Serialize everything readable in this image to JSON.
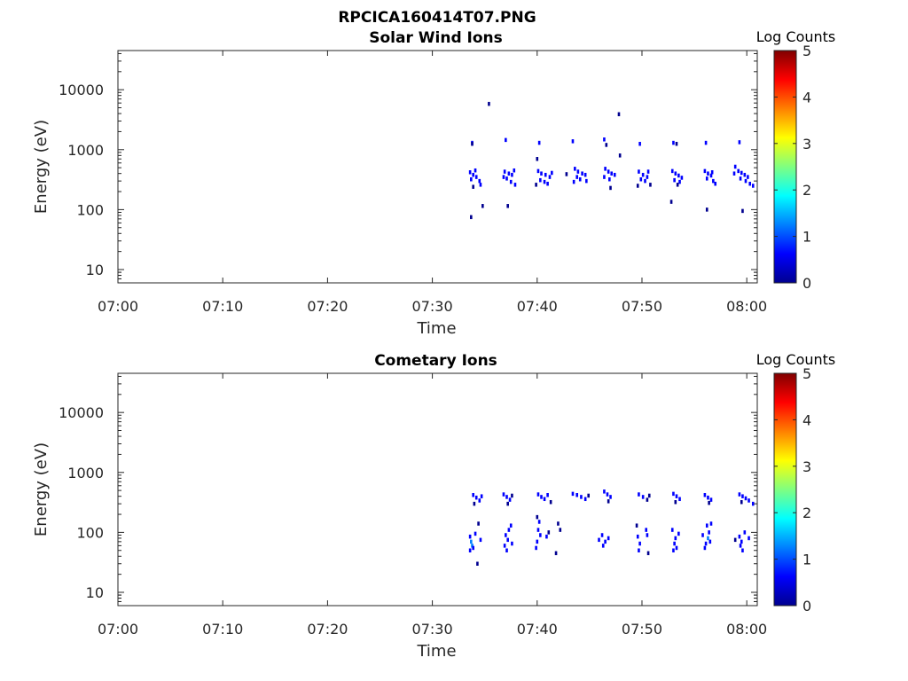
{
  "figure": {
    "title": "RPCICA160414T07.PNG"
  },
  "colormap": [
    "#00008f",
    "#0000ff",
    "#0080ff",
    "#00ffff",
    "#80ff80",
    "#ffff00",
    "#ff8000",
    "#ff0000",
    "#800000"
  ],
  "chart_data": [
    {
      "type": "heatmap",
      "title": "Solar Wind Ions",
      "xlabel": "Time",
      "ylabel": "Energy (eV)",
      "x_tick_labels": [
        "07:00",
        "07:10",
        "07:20",
        "07:30",
        "07:40",
        "07:50",
        "08:00"
      ],
      "x_tick_minutes": [
        0,
        10,
        20,
        30,
        40,
        50,
        60
      ],
      "xlim_minutes": [
        0,
        61
      ],
      "y_scale": "log",
      "ylim": [
        6,
        45000
      ],
      "y_tick_labels": [
        "10",
        "100",
        "1000",
        "10000"
      ],
      "y_tick_values": [
        10,
        100,
        1000,
        10000
      ],
      "colorbar": {
        "label": "Log Counts",
        "ticks": [
          "0",
          "1",
          "2",
          "3",
          "4",
          "5"
        ],
        "range": [
          0,
          5
        ]
      },
      "points": [
        [
          33.8,
          1300,
          0.4
        ],
        [
          33.8,
          1250,
          0.3
        ],
        [
          33.6,
          420,
          0.5
        ],
        [
          33.9,
          380,
          0.6
        ],
        [
          34.2,
          350,
          0.5
        ],
        [
          34.5,
          300,
          0.5
        ],
        [
          34.1,
          450,
          0.4
        ],
        [
          33.7,
          320,
          0.5
        ],
        [
          34.6,
          260,
          0.4
        ],
        [
          33.9,
          240,
          0.3
        ],
        [
          33.7,
          75,
          0.3
        ],
        [
          34.8,
          115,
          0.3
        ],
        [
          35.4,
          5800,
          0.3
        ],
        [
          37.0,
          1450,
          0.4
        ],
        [
          36.9,
          430,
          0.5
        ],
        [
          37.3,
          400,
          0.6
        ],
        [
          37.6,
          380,
          0.5
        ],
        [
          37.1,
          330,
          0.5
        ],
        [
          37.5,
          290,
          0.4
        ],
        [
          37.9,
          260,
          0.4
        ],
        [
          36.8,
          350,
          0.4
        ],
        [
          37.2,
          115,
          0.3
        ],
        [
          37.8,
          450,
          0.5
        ],
        [
          40.2,
          1300,
          0.4
        ],
        [
          40.0,
          700,
          0.3
        ],
        [
          40.1,
          440,
          0.5
        ],
        [
          40.4,
          400,
          0.6
        ],
        [
          40.8,
          380,
          0.6
        ],
        [
          41.2,
          350,
          0.5
        ],
        [
          40.3,
          310,
          0.5
        ],
        [
          40.7,
          290,
          0.5
        ],
        [
          41.0,
          270,
          0.4
        ],
        [
          41.4,
          410,
          0.5
        ],
        [
          39.9,
          260,
          0.3
        ],
        [
          43.4,
          1380,
          0.4
        ],
        [
          43.6,
          480,
          0.6
        ],
        [
          43.9,
          430,
          0.7
        ],
        [
          44.3,
          400,
          0.6
        ],
        [
          44.6,
          380,
          0.5
        ],
        [
          43.8,
          350,
          0.6
        ],
        [
          44.1,
          320,
          0.5
        ],
        [
          44.7,
          300,
          0.4
        ],
        [
          42.8,
          390,
          0.3
        ],
        [
          43.5,
          290,
          0.4
        ],
        [
          46.4,
          1480,
          0.4
        ],
        [
          46.6,
          1200,
          0.3
        ],
        [
          46.5,
          480,
          0.5
        ],
        [
          46.8,
          430,
          0.6
        ],
        [
          47.1,
          400,
          0.5
        ],
        [
          46.4,
          350,
          0.5
        ],
        [
          46.9,
          320,
          0.4
        ],
        [
          47.4,
          380,
          0.5
        ],
        [
          47.8,
          3900,
          0.3
        ],
        [
          47.9,
          800,
          0.3
        ],
        [
          47.0,
          230,
          0.3
        ],
        [
          49.8,
          1250,
          0.4
        ],
        [
          49.7,
          430,
          0.5
        ],
        [
          50.1,
          380,
          0.6
        ],
        [
          50.5,
          350,
          0.5
        ],
        [
          49.9,
          320,
          0.4
        ],
        [
          50.3,
          300,
          0.4
        ],
        [
          50.8,
          260,
          0.3
        ],
        [
          50.6,
          430,
          0.4
        ],
        [
          49.6,
          250,
          0.3
        ],
        [
          53.0,
          1300,
          0.4
        ],
        [
          53.3,
          1250,
          0.3
        ],
        [
          52.9,
          440,
          0.5
        ],
        [
          53.2,
          400,
          0.6
        ],
        [
          53.5,
          370,
          0.6
        ],
        [
          53.8,
          340,
          0.5
        ],
        [
          53.1,
          310,
          0.5
        ],
        [
          53.6,
          290,
          0.4
        ],
        [
          52.8,
          135,
          0.3
        ],
        [
          53.4,
          260,
          0.3
        ],
        [
          56.1,
          1300,
          0.4
        ],
        [
          56.0,
          440,
          0.5
        ],
        [
          56.3,
          400,
          0.6
        ],
        [
          56.6,
          370,
          0.5
        ],
        [
          56.2,
          330,
          0.5
        ],
        [
          56.8,
          300,
          0.5
        ],
        [
          57.0,
          270,
          0.4
        ],
        [
          56.2,
          100,
          0.3
        ],
        [
          56.7,
          420,
          0.4
        ],
        [
          59.3,
          1330,
          0.4
        ],
        [
          58.9,
          520,
          0.4
        ],
        [
          59.2,
          440,
          0.5
        ],
        [
          59.5,
          410,
          0.6
        ],
        [
          59.8,
          380,
          0.6
        ],
        [
          60.1,
          350,
          0.5
        ],
        [
          59.4,
          330,
          0.5
        ],
        [
          59.9,
          300,
          0.5
        ],
        [
          60.3,
          270,
          0.4
        ],
        [
          60.6,
          250,
          0.4
        ],
        [
          59.6,
          95,
          0.3
        ],
        [
          58.8,
          400,
          0.4
        ]
      ]
    },
    {
      "type": "heatmap",
      "title": "Cometary Ions",
      "xlabel": "Time",
      "ylabel": "Energy (eV)",
      "x_tick_labels": [
        "07:00",
        "07:10",
        "07:20",
        "07:30",
        "07:40",
        "07:50",
        "08:00"
      ],
      "x_tick_minutes": [
        0,
        10,
        20,
        30,
        40,
        50,
        60
      ],
      "xlim_minutes": [
        0,
        61
      ],
      "y_scale": "log",
      "ylim": [
        6,
        45000
      ],
      "y_tick_labels": [
        "10",
        "100",
        "1000",
        "10000"
      ],
      "y_tick_values": [
        10,
        100,
        1000,
        10000
      ],
      "colorbar": {
        "label": "Log Counts",
        "ticks": [
          "0",
          "1",
          "2",
          "3",
          "4",
          "5"
        ],
        "range": [
          0,
          5
        ]
      },
      "points": [
        [
          33.9,
          420,
          0.4
        ],
        [
          34.2,
          380,
          0.5
        ],
        [
          34.5,
          340,
          0.4
        ],
        [
          34.0,
          300,
          0.3
        ],
        [
          34.7,
          400,
          0.4
        ],
        [
          33.6,
          85,
          0.8
        ],
        [
          33.7,
          70,
          1.0
        ],
        [
          33.8,
          60,
          1.1
        ],
        [
          33.9,
          55,
          0.9
        ],
        [
          33.6,
          50,
          0.7
        ],
        [
          34.1,
          95,
          0.5
        ],
        [
          34.3,
          30,
          0.3
        ],
        [
          34.4,
          140,
          0.3
        ],
        [
          34.6,
          75,
          0.4
        ],
        [
          36.8,
          430,
          0.4
        ],
        [
          37.1,
          390,
          0.5
        ],
        [
          37.4,
          350,
          0.4
        ],
        [
          37.6,
          410,
          0.3
        ],
        [
          37.2,
          300,
          0.3
        ],
        [
          37.0,
          90,
          0.7
        ],
        [
          37.2,
          75,
          0.9
        ],
        [
          36.9,
          60,
          0.8
        ],
        [
          37.1,
          50,
          0.7
        ],
        [
          37.3,
          110,
          0.5
        ],
        [
          37.5,
          130,
          0.4
        ],
        [
          37.6,
          65,
          0.5
        ],
        [
          40.1,
          430,
          0.4
        ],
        [
          40.4,
          390,
          0.5
        ],
        [
          40.7,
          360,
          0.4
        ],
        [
          41.0,
          420,
          0.4
        ],
        [
          41.3,
          320,
          0.3
        ],
        [
          40.0,
          180,
          0.3
        ],
        [
          40.2,
          150,
          0.5
        ],
        [
          40.1,
          110,
          0.6
        ],
        [
          40.0,
          70,
          0.7
        ],
        [
          39.9,
          55,
          0.6
        ],
        [
          40.3,
          90,
          0.6
        ],
        [
          40.9,
          85,
          0.4
        ],
        [
          41.1,
          100,
          0.3
        ],
        [
          42.0,
          140,
          0.3
        ],
        [
          42.2,
          110,
          0.3
        ],
        [
          41.8,
          45,
          0.3
        ],
        [
          43.4,
          440,
          0.4
        ],
        [
          43.8,
          420,
          0.5
        ],
        [
          44.2,
          390,
          0.4
        ],
        [
          44.6,
          360,
          0.4
        ],
        [
          44.9,
          410,
          0.3
        ],
        [
          46.4,
          480,
          0.4
        ],
        [
          46.7,
          430,
          0.5
        ],
        [
          47.0,
          390,
          0.4
        ],
        [
          46.8,
          330,
          0.3
        ],
        [
          46.2,
          90,
          0.5
        ],
        [
          46.5,
          70,
          0.6
        ],
        [
          46.8,
          80,
          0.5
        ],
        [
          45.9,
          75,
          0.4
        ],
        [
          46.3,
          60,
          0.4
        ],
        [
          49.7,
          430,
          0.4
        ],
        [
          50.1,
          390,
          0.4
        ],
        [
          50.5,
          350,
          0.3
        ],
        [
          50.7,
          410,
          0.3
        ],
        [
          49.5,
          130,
          0.3
        ],
        [
          49.6,
          85,
          0.5
        ],
        [
          49.8,
          65,
          0.5
        ],
        [
          49.7,
          50,
          0.4
        ],
        [
          50.4,
          110,
          0.4
        ],
        [
          50.5,
          90,
          0.4
        ],
        [
          50.6,
          45,
          0.3
        ],
        [
          53.0,
          440,
          0.4
        ],
        [
          53.3,
          400,
          0.5
        ],
        [
          53.6,
          360,
          0.4
        ],
        [
          53.2,
          320,
          0.3
        ],
        [
          52.9,
          110,
          0.5
        ],
        [
          53.2,
          80,
          0.6
        ],
        [
          53.1,
          65,
          0.6
        ],
        [
          53.3,
          55,
          0.5
        ],
        [
          53.5,
          95,
          0.4
        ],
        [
          53.0,
          50,
          0.4
        ],
        [
          56.0,
          420,
          0.4
        ],
        [
          56.3,
          380,
          0.5
        ],
        [
          56.6,
          350,
          0.4
        ],
        [
          56.4,
          310,
          0.3
        ],
        [
          56.2,
          130,
          0.6
        ],
        [
          56.4,
          100,
          0.8
        ],
        [
          56.3,
          80,
          1.0
        ],
        [
          56.1,
          65,
          0.9
        ],
        [
          56.0,
          55,
          0.7
        ],
        [
          56.5,
          70,
          0.6
        ],
        [
          56.6,
          140,
          0.4
        ],
        [
          55.8,
          90,
          0.4
        ],
        [
          59.3,
          430,
          0.4
        ],
        [
          59.6,
          400,
          0.5
        ],
        [
          59.9,
          370,
          0.4
        ],
        [
          60.2,
          340,
          0.4
        ],
        [
          60.6,
          300,
          0.4
        ],
        [
          59.5,
          320,
          0.3
        ],
        [
          59.3,
          85,
          0.6
        ],
        [
          59.5,
          70,
          0.7
        ],
        [
          59.4,
          60,
          0.6
        ],
        [
          59.6,
          50,
          0.5
        ],
        [
          59.8,
          100,
          0.4
        ],
        [
          60.2,
          80,
          0.4
        ],
        [
          58.9,
          75,
          0.3
        ]
      ]
    }
  ]
}
